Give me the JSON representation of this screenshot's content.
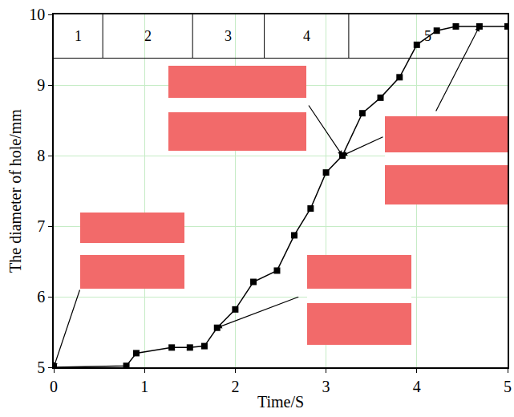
{
  "chart_data": {
    "type": "line",
    "x_label": "Time/S",
    "y_label": "The diameter of hole/mm",
    "x": [
      0,
      0.8,
      0.91,
      1.3,
      1.5,
      1.66,
      1.8,
      2.0,
      2.2,
      2.46,
      2.65,
      2.83,
      3.0,
      3.18,
      3.4,
      3.6,
      3.81,
      4.0,
      4.22,
      4.43,
      4.69,
      5.0
    ],
    "series": [
      {
        "name": "The diameter of hole",
        "color": "#000000",
        "marker": "square",
        "line_style": "solid",
        "values": [
          5.0,
          5.02,
          5.2,
          5.28,
          5.28,
          5.3,
          5.56,
          5.82,
          6.21,
          6.37,
          6.87,
          7.25,
          7.76,
          8.0,
          8.6,
          8.82,
          9.11,
          9.57,
          9.77,
          9.83,
          9.83,
          9.83
        ]
      }
    ],
    "xlim": [
      0,
      5
    ],
    "ylim": [
      5,
      10
    ],
    "xticks": [
      0,
      1,
      2,
      3,
      4,
      5
    ],
    "yticks": [
      5,
      6,
      7,
      8,
      9,
      10
    ],
    "grid": true,
    "phase_line_y": 9.38,
    "phases": [
      {
        "label": "1",
        "x0": 0,
        "x1": 0.54
      },
      {
        "label": "2",
        "x0": 0.54,
        "x1": 1.53
      },
      {
        "label": "3",
        "x0": 1.53,
        "x1": 2.32
      },
      {
        "label": "4",
        "x0": 2.32,
        "x1": 3.25
      },
      {
        "label": "5",
        "x0": 3.25,
        "x1": 5
      }
    ]
  }
}
